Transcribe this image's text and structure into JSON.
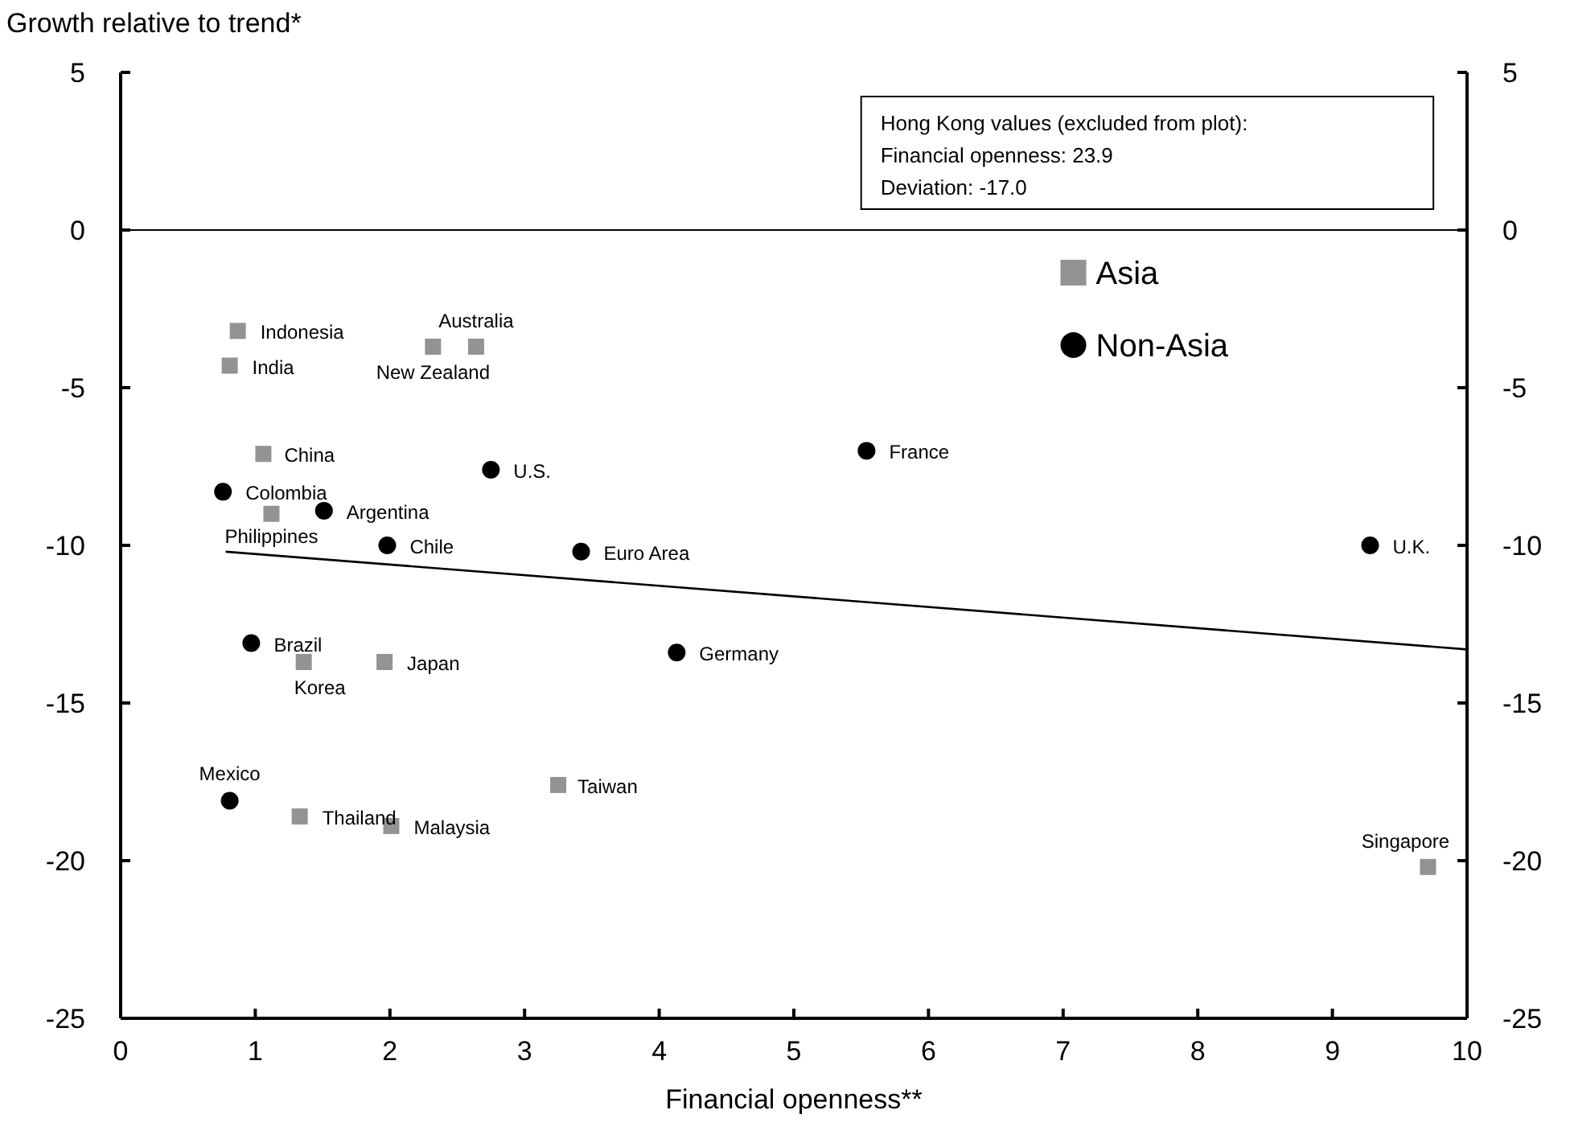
{
  "chart_data": {
    "type": "scatter",
    "xlabel": "Financial openness**",
    "ylabel": "Growth relative to trend*",
    "xlim": [
      0,
      10
    ],
    "xticks": [
      0,
      1,
      2,
      3,
      4,
      5,
      6,
      7,
      8,
      9,
      10
    ],
    "ylim": [
      -25,
      5
    ],
    "yticks": [
      -25,
      -20,
      -15,
      -10,
      -5,
      0,
      5
    ],
    "y2lim": [
      -25,
      5
    ],
    "y2ticks": [
      -25,
      -20,
      -15,
      -10,
      -5,
      0,
      5
    ],
    "legend": "top right",
    "grid": false,
    "ref_lines": [
      {
        "axis": "y",
        "value": 0,
        "color": "#000000"
      }
    ],
    "series": [
      {
        "name": "Asia",
        "marker": "square",
        "color": "#939393",
        "x": [
          0.87,
          0.81,
          2.32,
          2.64,
          1.06,
          1.12,
          1.36,
          1.96,
          3.25,
          1.33,
          2.01,
          9.71
        ],
        "values": [
          -3.2,
          -4.3,
          -3.7,
          -3.7,
          -7.1,
          -9.0,
          -13.7,
          -13.7,
          -17.6,
          -18.6,
          -18.9,
          -20.2
        ]
      },
      {
        "name": "Non-Asia",
        "marker": "circle",
        "color": "#000000",
        "x": [
          0.76,
          1.51,
          2.75,
          5.54,
          1.98,
          3.42,
          9.28,
          0.97,
          4.13,
          0.81
        ],
        "values": [
          -8.3,
          -8.9,
          -7.6,
          -7.0,
          -10.0,
          -10.2,
          -10.0,
          -13.1,
          -13.4,
          -18.1
        ]
      },
      {
        "type": "line",
        "marker": "none",
        "color": "#000000",
        "x": [
          0.78,
          10
        ],
        "values": [
          -10.2,
          -13.3
        ]
      }
    ],
    "annotations": [
      "Hong Kong values (excluded from plot):",
      "Financial openness: 23.9",
      "Deviation: -17.0",
      {
        "text": "Indonesia",
        "x": 0.87,
        "y": -3.2
      },
      {
        "text": "India",
        "x": 0.81,
        "y": -4.3
      },
      {
        "text": "New Zealand",
        "x": 2.32,
        "y": -3.7
      },
      {
        "text": "Australia",
        "x": 2.64,
        "y": -3.7
      },
      {
        "text": "China",
        "x": 1.06,
        "y": -7.1
      },
      {
        "text": "Philippines",
        "x": 1.12,
        "y": -9.0
      },
      {
        "text": "Korea",
        "x": 1.36,
        "y": -13.7
      },
      {
        "text": "Japan",
        "x": 1.96,
        "y": -13.7
      },
      {
        "text": "Taiwan",
        "x": 3.25,
        "y": -17.6
      },
      {
        "text": "Thailand",
        "x": 1.33,
        "y": -18.6
      },
      {
        "text": "Malaysia",
        "x": 2.01,
        "y": -18.9
      },
      {
        "text": "Singapore",
        "x": 9.71,
        "y": -20.2
      },
      {
        "text": "Colombia",
        "x": 0.76,
        "y": -8.3
      },
      {
        "text": "Argentina",
        "x": 1.51,
        "y": -8.9
      },
      {
        "text": "U.S.",
        "x": 2.75,
        "y": -7.6
      },
      {
        "text": "France",
        "x": 5.54,
        "y": -7.0
      },
      {
        "text": "Chile",
        "x": 1.98,
        "y": -10.0
      },
      {
        "text": "Euro Area",
        "x": 3.42,
        "y": -10.2
      },
      {
        "text": "U.K.",
        "x": 9.28,
        "y": -10.0
      },
      {
        "text": "Brazil",
        "x": 0.97,
        "y": -13.1
      },
      {
        "text": "Germany",
        "x": 4.13,
        "y": -13.4
      },
      {
        "text": "Mexico",
        "x": 0.81,
        "y": -18.1
      }
    ]
  }
}
